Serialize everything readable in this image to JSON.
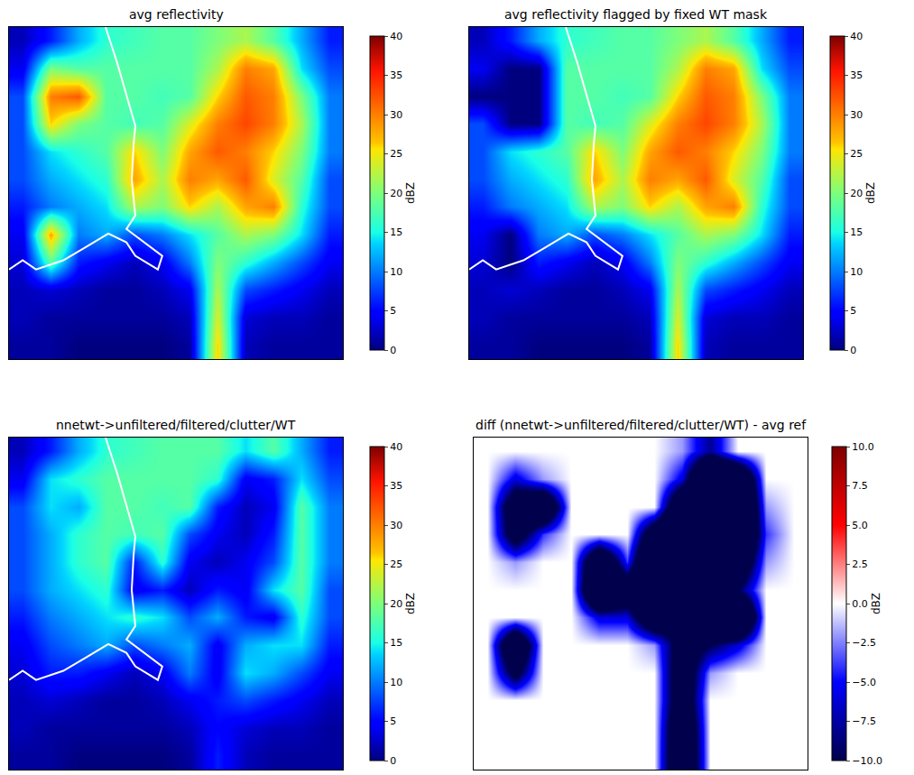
{
  "chart_data": [
    {
      "type": "heatmap",
      "title": "avg reflectivity",
      "tick_labels": false,
      "color": "jet",
      "x": [
        0.5,
        1.5,
        2.5,
        3.5,
        4.5,
        5.5,
        6.5,
        7.5,
        8.5,
        9.5,
        10.5,
        11.5
      ],
      "y": [
        0.5,
        1.5,
        2.5,
        3.5,
        4.5,
        5.5,
        6.5,
        7.5,
        8.5,
        9.5,
        10.5,
        11.5
      ],
      "xlim": [
        0,
        12
      ],
      "ylim": [
        12,
        0
      ],
      "colorbar": {
        "range": [
          0,
          40
        ],
        "ticks": [
          0,
          5,
          10,
          15,
          20,
          25,
          30,
          35,
          40
        ],
        "title": "dBZ"
      },
      "z": [
        [
          2,
          6,
          12,
          16,
          17,
          18,
          18,
          20,
          22,
          18,
          12,
          6
        ],
        [
          4,
          20,
          18,
          18,
          18,
          18,
          18,
          22,
          30,
          28,
          14,
          8
        ],
        [
          8,
          30,
          32,
          18,
          18,
          17,
          18,
          26,
          32,
          30,
          20,
          10
        ],
        [
          8,
          26,
          20,
          18,
          17,
          18,
          24,
          30,
          33,
          30,
          22,
          10
        ],
        [
          8,
          14,
          16,
          18,
          26,
          20,
          28,
          32,
          30,
          26,
          20,
          10
        ],
        [
          8,
          12,
          14,
          16,
          28,
          22,
          30,
          28,
          32,
          24,
          18,
          8
        ],
        [
          6,
          10,
          12,
          14,
          22,
          20,
          26,
          22,
          28,
          30,
          16,
          8
        ],
        [
          4,
          28,
          10,
          12,
          8,
          10,
          14,
          18,
          22,
          20,
          14,
          6
        ],
        [
          3,
          18,
          6,
          4,
          2,
          4,
          10,
          20,
          16,
          12,
          8,
          4
        ],
        [
          2,
          3,
          2,
          1,
          1,
          2,
          4,
          22,
          8,
          6,
          4,
          2
        ],
        [
          2,
          1,
          1,
          1,
          1,
          1,
          2,
          24,
          3,
          2,
          2,
          1
        ],
        [
          1,
          1,
          0,
          0,
          0,
          0,
          1,
          26,
          2,
          1,
          1,
          1
        ]
      ],
      "coastline": {
        "color": "white",
        "x": [
          3.47,
          3.89,
          4.54,
          4.48,
          4.41,
          4.54,
          4.22,
          4.87,
          5.51,
          5.35,
          4.54,
          4.22,
          3.57,
          2.76,
          1.95,
          0.97,
          0.49,
          0
        ],
        "y": [
          0,
          1.3,
          3.57,
          4.22,
          5.51,
          6.81,
          7.3,
          7.78,
          8.27,
          8.76,
          8.27,
          7.78,
          7.46,
          7.95,
          8.43,
          8.76,
          8.43,
          8.76
        ]
      }
    },
    {
      "type": "heatmap",
      "title": "avg reflectivity flagged by fixed WT mask",
      "tick_labels": false,
      "color": "jet",
      "x": [
        0.5,
        1.5,
        2.5,
        3.5,
        4.5,
        5.5,
        6.5,
        7.5,
        8.5,
        9.5,
        10.5,
        11.5
      ],
      "y": [
        0.5,
        1.5,
        2.5,
        3.5,
        4.5,
        5.5,
        6.5,
        7.5,
        8.5,
        9.5,
        10.5,
        11.5
      ],
      "xlim": [
        0,
        12
      ],
      "ylim": [
        12,
        0
      ],
      "colorbar": {
        "range": [
          0,
          40
        ],
        "ticks": [
          0,
          5,
          10,
          15,
          20,
          25,
          30,
          35,
          40
        ],
        "title": "dBZ"
      },
      "z": [
        [
          2,
          6,
          12,
          16,
          17,
          18,
          18,
          20,
          22,
          18,
          12,
          6
        ],
        [
          4,
          0,
          0,
          18,
          18,
          18,
          18,
          22,
          30,
          28,
          14,
          8
        ],
        [
          0,
          0,
          0,
          18,
          18,
          17,
          18,
          26,
          32,
          30,
          20,
          10
        ],
        [
          8,
          0,
          0,
          18,
          17,
          18,
          24,
          30,
          33,
          30,
          22,
          10
        ],
        [
          8,
          14,
          16,
          18,
          26,
          20,
          28,
          32,
          30,
          26,
          20,
          10
        ],
        [
          8,
          12,
          14,
          16,
          28,
          22,
          30,
          28,
          32,
          24,
          18,
          8
        ],
        [
          6,
          10,
          12,
          14,
          22,
          20,
          26,
          22,
          28,
          30,
          16,
          8
        ],
        [
          4,
          0,
          10,
          12,
          8,
          10,
          14,
          18,
          22,
          20,
          14,
          6
        ],
        [
          3,
          0,
          6,
          4,
          2,
          4,
          10,
          20,
          16,
          12,
          8,
          4
        ],
        [
          2,
          3,
          2,
          1,
          1,
          2,
          4,
          22,
          8,
          6,
          4,
          2
        ],
        [
          2,
          1,
          1,
          1,
          1,
          1,
          2,
          24,
          3,
          2,
          2,
          1
        ],
        [
          1,
          1,
          0,
          0,
          0,
          0,
          1,
          26,
          2,
          1,
          1,
          1
        ]
      ],
      "coastline": {
        "color": "white",
        "x": [
          3.47,
          3.89,
          4.54,
          4.48,
          4.41,
          4.54,
          4.22,
          4.87,
          5.51,
          5.35,
          4.54,
          4.22,
          3.57,
          2.76,
          1.95,
          0.97,
          0.49,
          0
        ],
        "y": [
          0,
          1.3,
          3.57,
          4.22,
          5.51,
          6.81,
          7.3,
          7.78,
          8.27,
          8.76,
          8.27,
          7.78,
          7.46,
          7.95,
          8.43,
          8.76,
          8.43,
          8.76
        ]
      }
    },
    {
      "type": "heatmap",
      "title": "nnetwt->unfiltered/filtered/clutter/WT",
      "tick_labels": false,
      "color": "jet",
      "x": [
        0.5,
        1.5,
        2.5,
        3.5,
        4.5,
        5.5,
        6.5,
        7.5,
        8.5,
        9.5,
        10.5,
        11.5
      ],
      "y": [
        0.5,
        1.5,
        2.5,
        3.5,
        4.5,
        5.5,
        6.5,
        7.5,
        8.5,
        9.5,
        10.5,
        11.5
      ],
      "xlim": [
        0,
        12
      ],
      "ylim": [
        12,
        0
      ],
      "colorbar": {
        "range": [
          0,
          40
        ],
        "ticks": [
          0,
          5,
          10,
          15,
          20,
          25,
          30,
          35,
          40
        ],
        "title": "dBZ"
      },
      "z": [
        [
          2,
          6,
          12,
          16,
          17,
          18,
          18,
          18,
          14,
          18,
          12,
          6
        ],
        [
          4,
          14,
          16,
          18,
          18,
          18,
          18,
          16,
          4,
          6,
          14,
          8
        ],
        [
          8,
          14,
          12,
          18,
          18,
          17,
          18,
          6,
          2,
          4,
          18,
          10
        ],
        [
          8,
          12,
          16,
          18,
          17,
          18,
          8,
          4,
          2,
          6,
          18,
          10
        ],
        [
          8,
          12,
          16,
          18,
          6,
          16,
          4,
          2,
          4,
          8,
          18,
          10
        ],
        [
          8,
          12,
          14,
          16,
          4,
          6,
          2,
          6,
          4,
          14,
          18,
          8
        ],
        [
          6,
          10,
          12,
          14,
          16,
          14,
          8,
          12,
          6,
          4,
          16,
          8
        ],
        [
          4,
          8,
          10,
          12,
          8,
          10,
          12,
          4,
          12,
          14,
          14,
          6
        ],
        [
          3,
          6,
          6,
          4,
          2,
          4,
          10,
          4,
          14,
          12,
          8,
          4
        ],
        [
          2,
          3,
          2,
          1,
          1,
          2,
          4,
          6,
          8,
          6,
          4,
          2
        ],
        [
          2,
          1,
          1,
          1,
          1,
          1,
          2,
          5,
          3,
          2,
          2,
          1
        ],
        [
          1,
          1,
          0,
          0,
          0,
          0,
          1,
          6,
          2,
          1,
          1,
          1
        ]
      ],
      "coastline": {
        "color": "white",
        "x": [
          3.47,
          3.89,
          4.54,
          4.48,
          4.41,
          4.54,
          4.22,
          4.87,
          5.51,
          5.35,
          4.54,
          4.22,
          3.57,
          2.76,
          1.95,
          0.97,
          0.49,
          0
        ],
        "y": [
          0,
          1.3,
          3.57,
          4.22,
          5.51,
          6.81,
          7.3,
          7.78,
          8.27,
          8.76,
          8.27,
          7.78,
          7.46,
          7.95,
          8.43,
          8.76,
          8.43,
          8.76
        ]
      }
    },
    {
      "type": "heatmap",
      "title": "diff (nnetwt->unfiltered/filtered/clutter/WT) - avg ref",
      "tick_labels": false,
      "color": "seismic",
      "x": [
        0.5,
        1.5,
        2.5,
        3.5,
        4.5,
        5.5,
        6.5,
        7.5,
        8.5,
        9.5,
        10.5,
        11.5
      ],
      "y": [
        0.5,
        1.5,
        2.5,
        3.5,
        4.5,
        5.5,
        6.5,
        7.5,
        8.5,
        9.5,
        10.5,
        11.5
      ],
      "xlim": [
        0,
        12
      ],
      "ylim": [
        12,
        0
      ],
      "colorbar": {
        "range": [
          -10,
          10
        ],
        "title": "dBZ",
        "ticks": [
          {
            "value": -10,
            "label": "−10.0"
          },
          {
            "value": -7.5,
            "label": "−7.5"
          },
          {
            "value": -5,
            "label": "−5.0"
          },
          {
            "value": -2.5,
            "label": "−2.5"
          },
          {
            "value": 0,
            "label": "0.0"
          },
          {
            "value": 2.5,
            "label": "2.5"
          },
          {
            "value": 5,
            "label": "5.0"
          },
          {
            "value": 7.5,
            "label": "7.5"
          },
          {
            "value": 10,
            "label": "10.0"
          }
        ]
      },
      "z": [
        [
          0,
          0,
          0,
          0,
          0,
          0,
          0,
          -2,
          -8,
          0,
          0,
          0
        ],
        [
          0,
          -6,
          -2,
          0,
          0,
          0,
          0,
          -6,
          -26,
          -22,
          0,
          0
        ],
        [
          0,
          -16,
          -20,
          0,
          0,
          0,
          0,
          -20,
          -30,
          -26,
          -2,
          0
        ],
        [
          0,
          -14,
          -4,
          0,
          0,
          0,
          -16,
          -26,
          -31,
          -24,
          -4,
          0
        ],
        [
          0,
          -2,
          0,
          0,
          -20,
          -4,
          -24,
          -30,
          -26,
          -18,
          -2,
          0
        ],
        [
          0,
          0,
          0,
          0,
          -24,
          -16,
          -28,
          -22,
          -28,
          -10,
          0,
          0
        ],
        [
          0,
          0,
          0,
          0,
          -6,
          -6,
          -18,
          -10,
          -22,
          -26,
          0,
          0
        ],
        [
          0,
          -20,
          0,
          0,
          0,
          0,
          -2,
          -14,
          -10,
          -6,
          0,
          0
        ],
        [
          0,
          -12,
          0,
          0,
          0,
          0,
          0,
          -16,
          -2,
          0,
          0,
          0
        ],
        [
          0,
          0,
          0,
          0,
          0,
          0,
          0,
          -16,
          0,
          0,
          0,
          0
        ],
        [
          0,
          0,
          0,
          0,
          0,
          0,
          0,
          -19,
          0,
          0,
          0,
          0
        ],
        [
          0,
          0,
          0,
          0,
          0,
          0,
          0,
          -20,
          0,
          0,
          0,
          0
        ]
      ]
    }
  ]
}
